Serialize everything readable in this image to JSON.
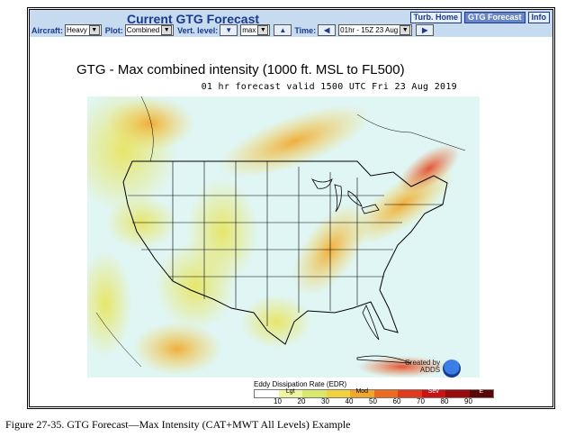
{
  "header": {
    "title": "Current GTG Forecast",
    "nav": [
      {
        "label": "Turb. Home",
        "active": false
      },
      {
        "label": "GTG Forecast",
        "active": true
      },
      {
        "label": "Info",
        "active": false
      }
    ]
  },
  "controls": {
    "aircraft_label": "Aircraft:",
    "aircraft_value": "Heavy",
    "plot_label": "Plot:",
    "plot_value": "Combined",
    "level_label": "Vert. level:",
    "level_value": "max",
    "time_label": "Time:",
    "time_value": "01hr - 15Z 23 Aug"
  },
  "map": {
    "title": "GTG - Max combined intensity (1000 ft. MSL to FL500)",
    "subtitle": "01 hr forecast valid 1500 UTC Fri 23 Aug 2019",
    "credit_line1": "Created by",
    "credit_line2": "ADDS"
  },
  "legend": {
    "title": "Eddy Dissipation Rate (EDR)",
    "bands": [
      {
        "label": "",
        "color": "#ffffff"
      },
      {
        "label": "Lgt",
        "color": "#eef7a0"
      },
      {
        "label": "",
        "color": "#d9e86a"
      },
      {
        "label": "",
        "color": "#f2d23c"
      },
      {
        "label": "Mod",
        "color": "#f2a62a"
      },
      {
        "label": "",
        "color": "#ee6a1e"
      },
      {
        "label": "",
        "color": "#e23a1a"
      },
      {
        "label": "Sev",
        "color": "#c81414"
      },
      {
        "label": "",
        "color": "#9a0c0c"
      },
      {
        "label": "E",
        "color": "#5a0606"
      }
    ],
    "ticks": [
      "10",
      "20",
      "30",
      "40",
      "50",
      "60",
      "70",
      "80",
      "90"
    ]
  },
  "caption": "Figure 27-35. GTG Forecast—Max Intensity (CAT+MWT All Levels) Example"
}
